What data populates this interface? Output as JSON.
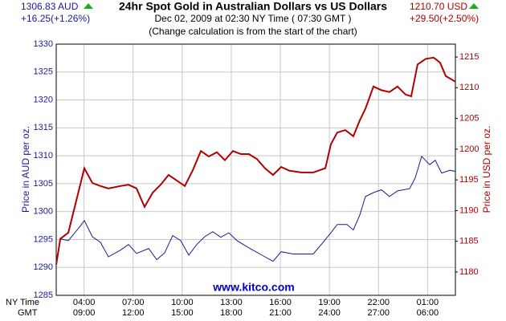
{
  "chart_data": {
    "type": "line",
    "title": "24hr Spot Gold in Australian Dollars vs US Dollars",
    "subtitle": "Dec 02, 2009 at 02:30 NY Time ( 07:30 GMT )",
    "note": "(Change calculation is from the start of the chart)",
    "left_price": "1306.83 AUD",
    "left_change": "+16.25(+1.26%)",
    "right_price": "1210.70 USD",
    "right_change": "+29.50(+2.50%)",
    "ylabel": "Price in AUD per oz.",
    "y2label": "Price in USD per oz.",
    "watermark": "www.kitco.com",
    "x_row_labels": [
      "NY Time",
      "GMT"
    ],
    "xlim": [
      2.3,
      26.7
    ],
    "xticks": [
      {
        "value": 4,
        "label": "04:00"
      },
      {
        "value": 7,
        "label": "07:00"
      },
      {
        "value": 10,
        "label": "10:00"
      },
      {
        "value": 13,
        "label": "13:00"
      },
      {
        "value": 16,
        "label": "16:00"
      },
      {
        "value": 19,
        "label": "19:00"
      },
      {
        "value": 22,
        "label": "22:00"
      },
      {
        "value": 25,
        "label": "01:00"
      }
    ],
    "x2ticklabels": [
      "09:00",
      "12:00",
      "15:00",
      "18:00",
      "21:00",
      "24:00",
      "27:00",
      "06:00"
    ],
    "ylim": [
      1285,
      1330
    ],
    "yticks": [
      1285,
      1290,
      1295,
      1300,
      1305,
      1310,
      1315,
      1320,
      1325,
      1330
    ],
    "y2lim": [
      1176.2,
      1217.1
    ],
    "y2ticks": [
      1180,
      1185,
      1190,
      1195,
      1200,
      1205,
      1210,
      1215
    ],
    "grid": true,
    "series": [
      {
        "name": "AUD",
        "color": "#1a1a99",
        "x": [
          2.3,
          2.55,
          3.04,
          3.77,
          4.02,
          4.51,
          5.0,
          5.49,
          6.23,
          6.72,
          7.21,
          7.95,
          8.44,
          8.93,
          9.42,
          9.91,
          10.4,
          10.89,
          11.38,
          11.87,
          12.36,
          12.85,
          13.35,
          13.84,
          14.33,
          15.06,
          15.55,
          16.05,
          16.78,
          18.01,
          18.5,
          19.09,
          19.48,
          20.07,
          20.46,
          20.86,
          21.2,
          21.69,
          22.18,
          22.67,
          23.16,
          23.9,
          24.24,
          24.64,
          25.13,
          25.47,
          25.86,
          26.36,
          26.7
        ],
        "values": [
          1290.5,
          1295.1,
          1294.8,
          1297.4,
          1298.4,
          1295.5,
          1294.5,
          1291.9,
          1293.1,
          1294.1,
          1292.5,
          1293.4,
          1291.4,
          1292.6,
          1295.7,
          1294.8,
          1292.2,
          1294.1,
          1295.5,
          1296.4,
          1295.4,
          1296.2,
          1294.8,
          1293.9,
          1293.1,
          1291.9,
          1291.1,
          1292.8,
          1292.4,
          1292.4,
          1294.1,
          1296.2,
          1297.7,
          1297.7,
          1296.7,
          1299.4,
          1302.7,
          1303.4,
          1303.9,
          1302.7,
          1303.7,
          1304.1,
          1306.0,
          1309.9,
          1308.4,
          1309.2,
          1306.9,
          1307.4,
          1307.2
        ]
      },
      {
        "name": "USD",
        "color": "#b00000",
        "axis": "y2",
        "x": [
          2.3,
          2.55,
          3.04,
          3.77,
          4.02,
          4.51,
          5.0,
          5.49,
          6.23,
          6.72,
          7.21,
          7.7,
          8.19,
          8.68,
          9.17,
          9.67,
          10.16,
          10.65,
          11.14,
          11.63,
          12.12,
          12.61,
          13.1,
          13.59,
          14.08,
          14.57,
          15.06,
          15.55,
          16.05,
          16.54,
          17.27,
          18.01,
          18.75,
          19.09,
          19.48,
          19.97,
          20.46,
          20.86,
          21.2,
          21.69,
          22.18,
          22.67,
          23.16,
          23.65,
          24.0,
          24.39,
          24.88,
          25.37,
          25.76,
          26.11,
          26.7
        ],
        "values": [
          1181.2,
          1185.4,
          1186.4,
          1194.2,
          1196.9,
          1194.5,
          1194.0,
          1193.6,
          1194.0,
          1194.2,
          1193.6,
          1190.6,
          1192.9,
          1194.2,
          1195.8,
          1194.9,
          1194.0,
          1196.6,
          1199.7,
          1198.8,
          1199.5,
          1198.2,
          1199.7,
          1199.2,
          1199.2,
          1198.4,
          1196.9,
          1195.8,
          1197.1,
          1196.5,
          1196.2,
          1196.2,
          1196.9,
          1200.8,
          1202.7,
          1203.1,
          1202.1,
          1204.7,
          1206.6,
          1210.2,
          1209.6,
          1209.3,
          1210.2,
          1208.9,
          1208.6,
          1213.8,
          1214.7,
          1214.9,
          1214.1,
          1211.9,
          1211.0
        ]
      }
    ]
  }
}
